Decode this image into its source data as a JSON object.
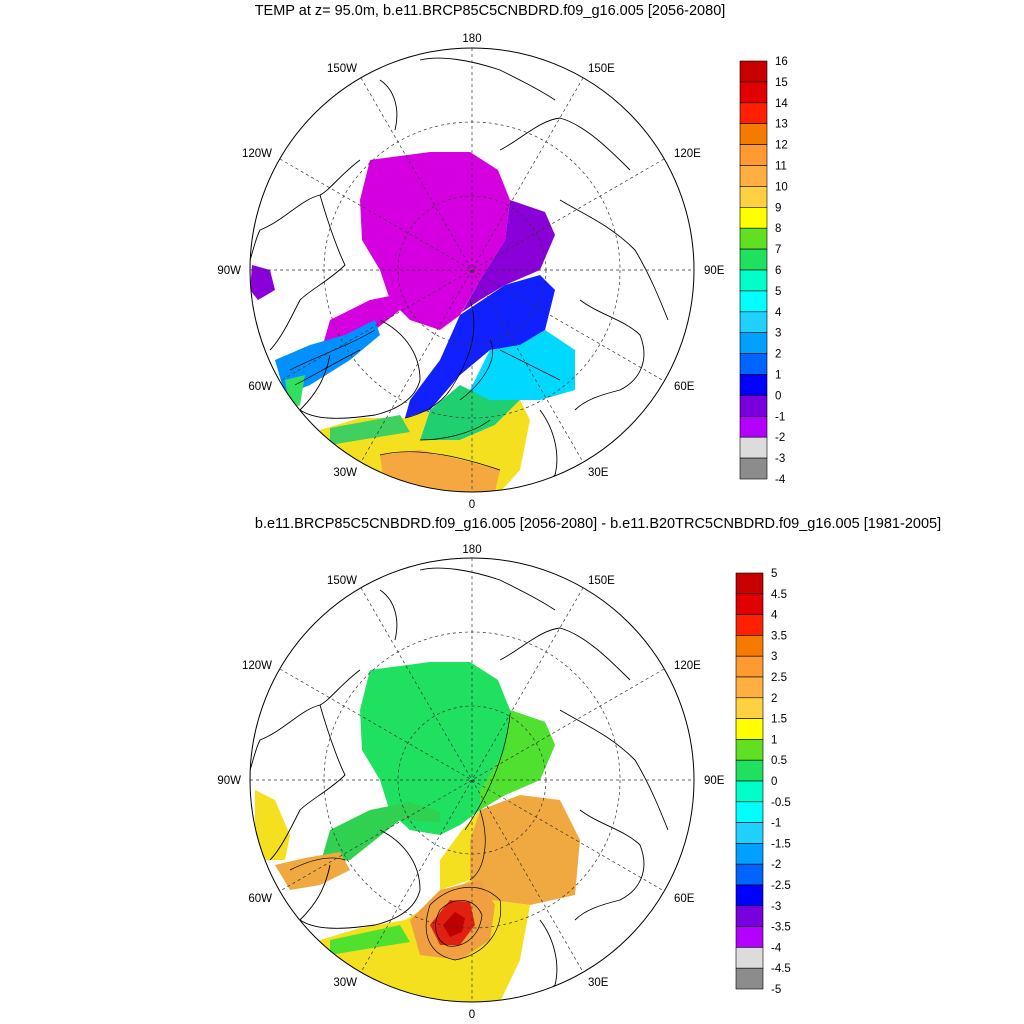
{
  "panels": [
    {
      "title": "TEMP at z=  95.0m, b.e11.BRCP85C5CNBDRD.f09_g16.005 [2056-2080]",
      "colorbar": {
        "labels": [
          "16",
          "15",
          "14",
          "13",
          "12",
          "11",
          "10",
          "9",
          "8",
          "7",
          "6",
          "5",
          "4",
          "3",
          "2",
          "1",
          "0",
          "-1",
          "-2",
          "-3",
          "-4"
        ],
        "colors": [
          "#c80000",
          "#e10000",
          "#ff2000",
          "#f57b00",
          "#ff9a30",
          "#ffae40",
          "#ffd040",
          "#ffff00",
          "#60e020",
          "#20e060",
          "#00ffc8",
          "#00ffff",
          "#20d0ff",
          "#00a0ff",
          "#0064ff",
          "#0000ff",
          "#7800dc",
          "#b400ff",
          "#dcdcdc",
          "#8c8c8c"
        ]
      },
      "chart_data": {
        "type": "heatmap",
        "variable": "TEMP",
        "level": "z=  95.0m",
        "case": "b.e11.BRCP85C5CNBDRD.f09_g16.005",
        "years": "[2056-2080]",
        "projection": "north polar stereographic",
        "color_levels": [
          16,
          15,
          14,
          13,
          12,
          11,
          10,
          9,
          8,
          7,
          6,
          5,
          4,
          3,
          2,
          1,
          0,
          -1,
          -2,
          -3,
          -4
        ]
      }
    },
    {
      "title": "b.e11.BRCP85C5CNBDRD.f09_g16.005 [2056-2080] - b.e11.B20TRC5CNBDRD.f09_g16.005 [1981-2005]",
      "colorbar": {
        "labels": [
          "5",
          "4.5",
          "4",
          "3.5",
          "3",
          "2.5",
          "2",
          "1.5",
          "1",
          "0.5",
          "0",
          "-0.5",
          "-1",
          "-1.5",
          "-2",
          "-2.5",
          "-3",
          "-3.5",
          "-4",
          "-4.5",
          "-5"
        ],
        "colors": [
          "#c80000",
          "#e10000",
          "#ff2000",
          "#f57b00",
          "#ff9a30",
          "#ffae40",
          "#ffd040",
          "#ffff00",
          "#60e020",
          "#20e060",
          "#00ffc8",
          "#00ffff",
          "#20d0ff",
          "#00a0ff",
          "#0064ff",
          "#0000ff",
          "#7800dc",
          "#b400ff",
          "#dcdcdc",
          "#8c8c8c"
        ]
      },
      "chart_data": {
        "type": "heatmap",
        "variable": "TEMP difference",
        "case": "b.e11.BRCP85C5CNBDRD.f09_g16.005 [2056-2080] - b.e11.B20TRC5CNBDRD.f09_g16.005 [1981-2005]",
        "projection": "north polar stereographic",
        "color_levels": [
          5,
          4.5,
          4,
          3.5,
          3,
          2.5,
          2,
          1.5,
          1,
          0.5,
          0,
          -0.5,
          -1,
          -1.5,
          -2,
          -2.5,
          -3,
          -3.5,
          -4,
          -4.5,
          -5
        ]
      }
    }
  ],
  "longitude_labels": {
    "top": "180",
    "bottom": "0",
    "upper_left": "150W",
    "upper_right": "150E",
    "mid_upper_left": "120W",
    "mid_upper_right": "120E",
    "left": "90W",
    "right": "90E",
    "lower_left": "60W",
    "lower_right": "60E",
    "bottom_left": "30W",
    "bottom_right": "30E"
  }
}
